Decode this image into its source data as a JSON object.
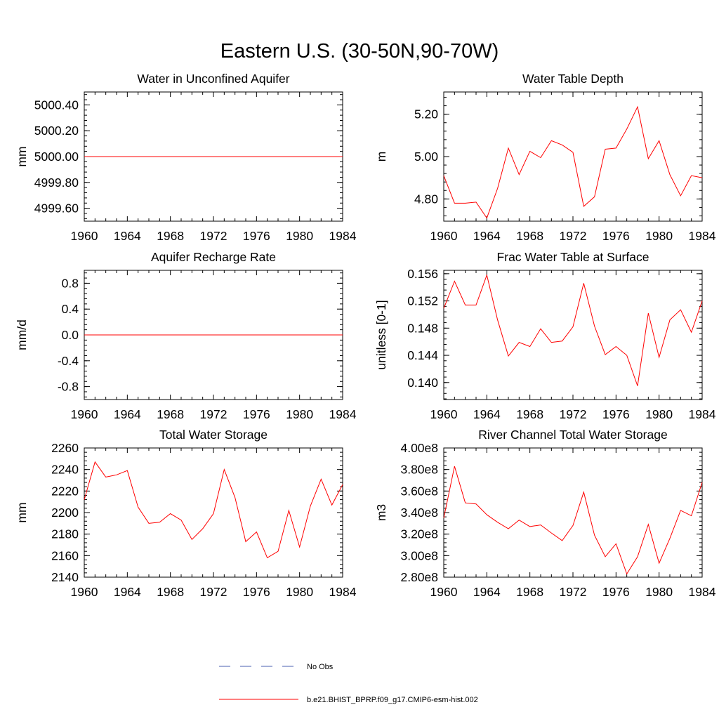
{
  "figure": {
    "title": "Eastern U.S. (30-50N,90-70W)"
  },
  "legend": {
    "items": [
      {
        "label": "No Obs",
        "color": "#4a5fb0",
        "style": "dashed"
      },
      {
        "label": "b.e21.BHIST_BPRP.f09_g17.CMIP6-esm-hist.002",
        "color": "#ff0000",
        "style": "solid"
      }
    ]
  },
  "chart_data": [
    {
      "type": "line",
      "title": "Water in Unconfined Aquifer",
      "ylabel": "mm",
      "xlim": [
        1960,
        1984
      ],
      "ylim": [
        4999.5,
        5000.5
      ],
      "xticks": [
        1960,
        1964,
        1968,
        1972,
        1976,
        1980,
        1984
      ],
      "xtick_labels": [
        "1960",
        "1964",
        "1968",
        "1972",
        "1976",
        "1980",
        "1984"
      ],
      "yticks": [
        4999.6,
        4999.8,
        5000.0,
        5000.2,
        5000.4
      ],
      "ytick_labels": [
        "4999.60",
        "4999.80",
        "5000.00",
        "5000.20",
        "5000.40"
      ],
      "series": [
        {
          "name": "b.e21.BHIST_BPRP.f09_g17.CMIP6-esm-hist.002",
          "x": [
            1960,
            1961,
            1962,
            1963,
            1964,
            1965,
            1966,
            1967,
            1968,
            1969,
            1970,
            1971,
            1972,
            1973,
            1974,
            1975,
            1976,
            1977,
            1978,
            1979,
            1980,
            1981,
            1982,
            1983,
            1984
          ],
          "values": [
            5000,
            5000,
            5000,
            5000,
            5000,
            5000,
            5000,
            5000,
            5000,
            5000,
            5000,
            5000,
            5000,
            5000,
            5000,
            5000,
            5000,
            5000,
            5000,
            5000,
            5000,
            5000,
            5000,
            5000,
            5000
          ]
        }
      ]
    },
    {
      "type": "line",
      "title": "Water Table Depth",
      "ylabel": "m",
      "xlim": [
        1960,
        1984
      ],
      "ylim": [
        4.695,
        5.305
      ],
      "xticks": [
        1960,
        1964,
        1968,
        1972,
        1976,
        1980,
        1984
      ],
      "xtick_labels": [
        "1960",
        "1964",
        "1968",
        "1972",
        "1976",
        "1980",
        "1984"
      ],
      "yticks": [
        4.8,
        5.0,
        5.2
      ],
      "ytick_labels": [
        "4.80",
        "5.00",
        "5.20"
      ],
      "series": [
        {
          "name": "b.e21.BHIST_BPRP.f09_g17.CMIP6-esm-hist.002",
          "x": [
            1960,
            1961,
            1962,
            1963,
            1964,
            1965,
            1966,
            1967,
            1968,
            1969,
            1970,
            1971,
            1972,
            1973,
            1974,
            1975,
            1976,
            1977,
            1978,
            1979,
            1980,
            1981,
            1982,
            1983,
            1984
          ],
          "values": [
            4.91,
            4.78,
            4.78,
            4.785,
            4.71,
            4.85,
            5.04,
            4.915,
            5.025,
            4.995,
            5.075,
            5.055,
            5.02,
            4.765,
            4.81,
            5.035,
            5.04,
            5.13,
            5.235,
            4.99,
            5.075,
            4.915,
            4.815,
            4.91,
            4.9
          ]
        }
      ]
    },
    {
      "type": "line",
      "title": "Aquifer Recharge Rate",
      "ylabel": "mm/d",
      "xlim": [
        1960,
        1984
      ],
      "ylim": [
        -1.0,
        1.0
      ],
      "xticks": [
        1960,
        1964,
        1968,
        1972,
        1976,
        1980,
        1984
      ],
      "xtick_labels": [
        "1960",
        "1964",
        "1968",
        "1972",
        "1976",
        "1980",
        "1984"
      ],
      "yticks": [
        -0.8,
        -0.4,
        0.0,
        0.4,
        0.8
      ],
      "ytick_labels": [
        "-0.8",
        "-0.4",
        "0.0",
        "0.4",
        "0.8"
      ],
      "series": [
        {
          "name": "b.e21.BHIST_BPRP.f09_g17.CMIP6-esm-hist.002",
          "x": [
            1960,
            1961,
            1962,
            1963,
            1964,
            1965,
            1966,
            1967,
            1968,
            1969,
            1970,
            1971,
            1972,
            1973,
            1974,
            1975,
            1976,
            1977,
            1978,
            1979,
            1980,
            1981,
            1982,
            1983,
            1984
          ],
          "values": [
            0,
            0,
            0,
            0,
            0,
            0,
            0,
            0,
            0,
            0,
            0,
            0,
            0,
            0,
            0,
            0,
            0,
            0,
            0,
            0,
            0,
            0,
            0,
            0,
            0
          ]
        }
      ]
    },
    {
      "type": "line",
      "title": "Frac Water Table at Surface",
      "ylabel": "unitless [0-1]",
      "xlim": [
        1960,
        1984
      ],
      "ylim": [
        0.1375,
        0.1565
      ],
      "xticks": [
        1960,
        1964,
        1968,
        1972,
        1976,
        1980,
        1984
      ],
      "xtick_labels": [
        "1960",
        "1964",
        "1968",
        "1972",
        "1976",
        "1980",
        "1984"
      ],
      "yticks": [
        0.14,
        0.144,
        0.148,
        0.152,
        0.156
      ],
      "ytick_labels": [
        "0.140",
        "0.144",
        "0.148",
        "0.152",
        "0.156"
      ],
      "series": [
        {
          "name": "b.e21.BHIST_BPRP.f09_g17.CMIP6-esm-hist.002",
          "x": [
            1960,
            1961,
            1962,
            1963,
            1964,
            1965,
            1966,
            1967,
            1968,
            1969,
            1970,
            1971,
            1972,
            1973,
            1974,
            1975,
            1976,
            1977,
            1978,
            1979,
            1980,
            1981,
            1982,
            1983,
            1984
          ],
          "values": [
            0.1509,
            0.1549,
            0.1514,
            0.1514,
            0.1558,
            0.1492,
            0.1439,
            0.1459,
            0.1453,
            0.1479,
            0.1459,
            0.1461,
            0.1482,
            0.1546,
            0.1483,
            0.1441,
            0.1453,
            0.144,
            0.1395,
            0.1502,
            0.1437,
            0.1492,
            0.1507,
            0.1474,
            0.152
          ]
        }
      ]
    },
    {
      "type": "line",
      "title": "Total Water Storage",
      "ylabel": "mm",
      "xlim": [
        1960,
        1984
      ],
      "ylim": [
        2140,
        2260
      ],
      "xticks": [
        1960,
        1964,
        1968,
        1972,
        1976,
        1980,
        1984
      ],
      "xtick_labels": [
        "1960",
        "1964",
        "1968",
        "1972",
        "1976",
        "1980",
        "1984"
      ],
      "yticks": [
        2140,
        2160,
        2180,
        2200,
        2220,
        2240,
        2260
      ],
      "ytick_labels": [
        "2140",
        "2160",
        "2180",
        "2200",
        "2220",
        "2240",
        "2260"
      ],
      "series": [
        {
          "name": "b.e21.BHIST_BPRP.f09_g17.CMIP6-esm-hist.002",
          "x": [
            1960,
            1961,
            1962,
            1963,
            1964,
            1965,
            1966,
            1967,
            1968,
            1969,
            1970,
            1971,
            1972,
            1973,
            1974,
            1975,
            1976,
            1977,
            1978,
            1979,
            1980,
            1981,
            1982,
            1983,
            1984
          ],
          "values": [
            2212,
            2247,
            2233,
            2235,
            2239,
            2205,
            2190,
            2191,
            2199,
            2193,
            2175,
            2185,
            2199,
            2240,
            2214,
            2173,
            2182,
            2158,
            2164,
            2202,
            2168,
            2206,
            2231,
            2207,
            2226
          ]
        }
      ]
    },
    {
      "type": "line",
      "title": "River Channel Total Water Storage",
      "ylabel": "m3",
      "xlim": [
        1960,
        1984
      ],
      "ylim": [
        280000000.0,
        400000000.0
      ],
      "xticks": [
        1960,
        1964,
        1968,
        1972,
        1976,
        1980,
        1984
      ],
      "xtick_labels": [
        "1960",
        "1964",
        "1968",
        "1972",
        "1976",
        "1980",
        "1984"
      ],
      "yticks": [
        280000000.0,
        300000000.0,
        320000000.0,
        340000000.0,
        360000000.0,
        380000000.0,
        400000000.0
      ],
      "ytick_labels": [
        "2.80e8",
        "3.00e8",
        "3.20e8",
        "3.40e8",
        "3.60e8",
        "3.80e8",
        "4.00e8"
      ],
      "series": [
        {
          "name": "b.e21.BHIST_BPRP.f09_g17.CMIP6-esm-hist.002",
          "x": [
            1960,
            1961,
            1962,
            1963,
            1964,
            1965,
            1966,
            1967,
            1968,
            1969,
            1970,
            1971,
            1972,
            1973,
            1974,
            1975,
            1976,
            1977,
            1978,
            1979,
            1980,
            1981,
            1982,
            1983,
            1984
          ],
          "values": [
            335000000.0,
            383000000.0,
            349000000.0,
            348000000.0,
            338000000.0,
            331000000.0,
            325000000.0,
            333000000.0,
            327000000.0,
            328500000.0,
            321000000.0,
            314000000.0,
            328000000.0,
            359000000.0,
            319000000.0,
            299000000.0,
            311000000.0,
            283000000.0,
            299000000.0,
            329000000.0,
            293000000.0,
            316000000.0,
            342000000.0,
            337000000.0,
            368000000.0
          ]
        }
      ]
    }
  ]
}
